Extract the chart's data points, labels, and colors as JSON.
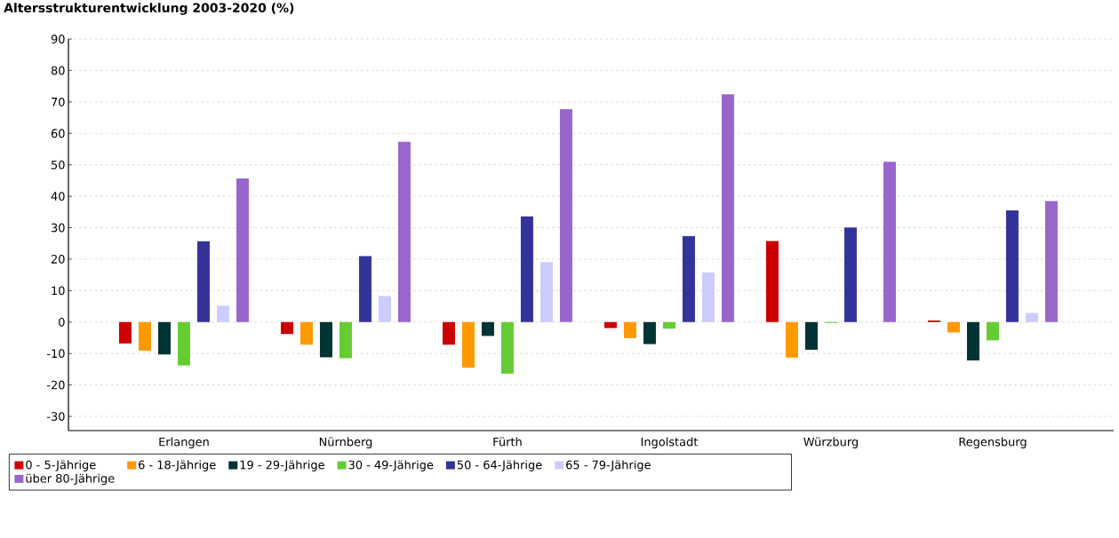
{
  "chart_data": {
    "type": "bar",
    "title": "Altersstrukturentwicklung 2003-2020 (%)",
    "categories": [
      "Erlangen",
      "Nürnberg",
      "Fürth",
      "Ingolstadt",
      "Würzburg",
      "Regensburg"
    ],
    "series": [
      {
        "name": "0 - 5-Jährige",
        "color": "#cc0000",
        "values": [
          -6.8,
          -3.8,
          -7.2,
          -1.9,
          25.8,
          0.5
        ]
      },
      {
        "name": "6 - 18-Jährige",
        "color": "#ff9900",
        "values": [
          -9.1,
          -7.2,
          -14.5,
          -5.1,
          -11.3,
          -3.3
        ]
      },
      {
        "name": "19 - 29-Jährige",
        "color": "#003333",
        "values": [
          -10.3,
          -11.2,
          -4.4,
          -7.0,
          -8.8,
          -12.2
        ]
      },
      {
        "name": "30 - 49-Jährige",
        "color": "#66cc33",
        "values": [
          -13.8,
          -11.5,
          -16.4,
          -2.1,
          -0.3,
          -5.8
        ]
      },
      {
        "name": "50 - 64-Jährige",
        "color": "#333399",
        "values": [
          25.7,
          21.0,
          33.6,
          27.3,
          30.1,
          35.5
        ]
      },
      {
        "name": "65 - 79-Jährige",
        "color": "#ccccff",
        "values": [
          5.2,
          8.3,
          19.1,
          15.8,
          null,
          2.9
        ]
      },
      {
        "name": "über 80-Jährige",
        "color": "#9966cc",
        "values": [
          45.7,
          57.3,
          67.7,
          72.4,
          51.0,
          38.5
        ]
      }
    ],
    "ylim": [
      -34.5,
      90
    ],
    "yticks": [
      -30,
      -20,
      -10,
      0,
      10,
      20,
      30,
      40,
      50,
      60,
      70,
      80,
      90
    ],
    "grid": "y",
    "legend": "bottom"
  }
}
